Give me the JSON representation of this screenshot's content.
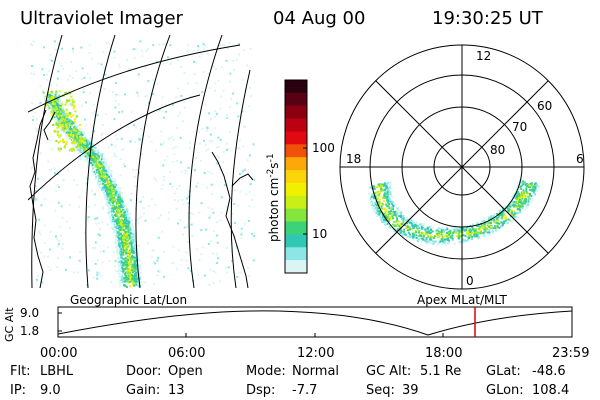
{
  "header": {
    "title": "Ultraviolet Imager",
    "date": "04 Aug 00",
    "time": "19:30:25 UT"
  },
  "colorbar": {
    "label": "photon cm^-2s^-1",
    "label_main": "photon cm",
    "sup1": "-2",
    "label_s": "s",
    "sup2": "-1",
    "ticks": [
      "100",
      "10"
    ],
    "colors": [
      "#2a0010",
      "#5a0015",
      "#8b0010",
      "#bb0012",
      "#e00a10",
      "#f0520a",
      "#fca80a",
      "#fcd40a",
      "#f0f000",
      "#c8f016",
      "#84e63c",
      "#3cd278",
      "#30c8b4",
      "#8ce6e6",
      "#dcf4f4"
    ]
  },
  "left_panel": {
    "caption": "Geographic Lat/Lon"
  },
  "polar_plot": {
    "caption": "Apex MLat/MLT",
    "mlt_labels": {
      "top": "12",
      "left": "18",
      "right": "6",
      "bottom": "0"
    },
    "lat_labels": [
      "60",
      "70",
      "80"
    ]
  },
  "altitude_strip": {
    "ylabel": "GC Alt",
    "yticks": [
      "9.0",
      "1.8"
    ],
    "time_labels": [
      "00:00",
      "06:00",
      "12:00",
      "18:00",
      "23:59"
    ],
    "cursor_color": "#e00000"
  },
  "info": {
    "flt_label": "Flt:",
    "flt_value": "LBHL",
    "ip_label": "IP:",
    "ip_value": "9.0",
    "door_label": "Door:",
    "door_value": "Open",
    "gain_label": "Gain:",
    "gain_value": "13",
    "mode_label": "Mode:",
    "mode_value": "Normal",
    "dsp_label": "Dsp:",
    "dsp_value": "-7.7",
    "gcalt_label": "GC Alt:",
    "gcalt_value": "5.1 Re",
    "seq_label": "Seq:",
    "seq_value": "39",
    "glat_label": "GLat:",
    "glat_value": "-48.6",
    "glon_label": "GLon:",
    "glon_value": "108.4"
  }
}
